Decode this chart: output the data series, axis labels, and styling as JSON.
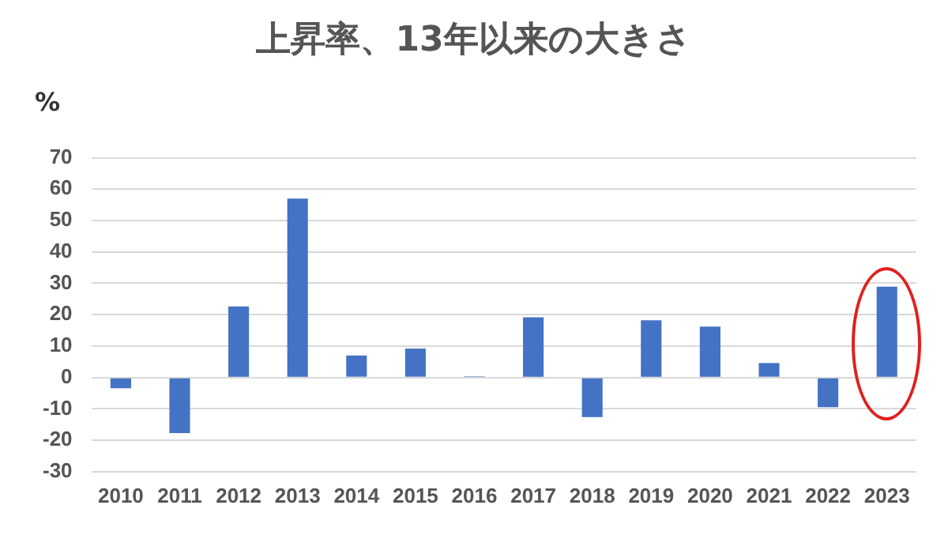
{
  "chart_data": {
    "type": "bar",
    "title": "上昇率、13年以来の大きさ",
    "ylabel": "%",
    "categories": [
      "2010",
      "2011",
      "2012",
      "2013",
      "2014",
      "2015",
      "2016",
      "2017",
      "2018",
      "2019",
      "2020",
      "2021",
      "2022",
      "2023"
    ],
    "values": [
      -3.4,
      -17.7,
      22.6,
      57,
      7,
      9.2,
      0.4,
      19.2,
      -12.6,
      18.2,
      16.2,
      4.6,
      -9.5,
      28.9
    ],
    "color": "#4472c4",
    "ylim": [
      -30,
      70
    ],
    "yticks": [
      -30,
      -20,
      -10,
      0,
      10,
      20,
      30,
      40,
      50,
      60,
      70
    ],
    "grid": "y",
    "legend": false
  }
}
